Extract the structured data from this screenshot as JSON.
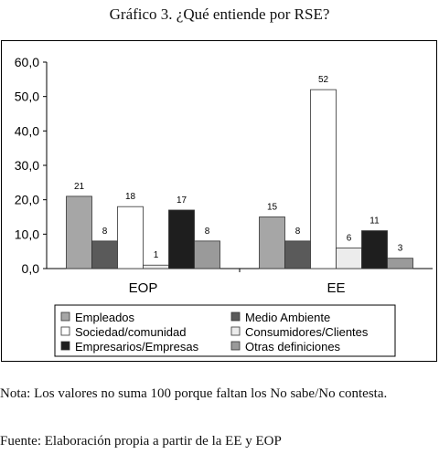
{
  "title": "Gráfico 3. ¿Qué entiende por RSE?",
  "note": "Nota: Los valores no suma 100 porque faltan los No sabe/No contesta.",
  "source": "Fuente: Elaboración propia a partir de la EE y EOP",
  "chart_data": {
    "type": "bar",
    "title": "",
    "xlabel": "",
    "ylabel": "",
    "categories": [
      "EOP",
      "EE"
    ],
    "ylim": [
      0,
      60
    ],
    "yticks": [
      "0,0",
      "10,0",
      "20,0",
      "30,0",
      "40,0",
      "50,0",
      "60,0"
    ],
    "grid": false,
    "legend_position": "bottom",
    "series": [
      {
        "name": "Empleados",
        "values": [
          21,
          15
        ],
        "labels": [
          "21",
          "15"
        ],
        "color": "#a6a6a6"
      },
      {
        "name": "Medio Ambiente",
        "values": [
          8,
          8
        ],
        "labels": [
          "8",
          "8"
        ],
        "color": "#5a5a5a"
      },
      {
        "name": "Sociedad/comunidad",
        "values": [
          18,
          52
        ],
        "labels": [
          "18",
          "52"
        ],
        "color": "#ffffff"
      },
      {
        "name": "Consumidores/Clientes",
        "values": [
          1,
          6
        ],
        "labels": [
          "1",
          "6"
        ],
        "color": "#ececec"
      },
      {
        "name": "Empresarios/Empresas",
        "values": [
          17,
          11
        ],
        "labels": [
          "17",
          "11"
        ],
        "color": "#1e1e1e"
      },
      {
        "name": "Otras definiciones",
        "values": [
          8,
          3
        ],
        "labels": [
          "8",
          "3"
        ],
        "color": "#9a9a9a"
      }
    ]
  }
}
